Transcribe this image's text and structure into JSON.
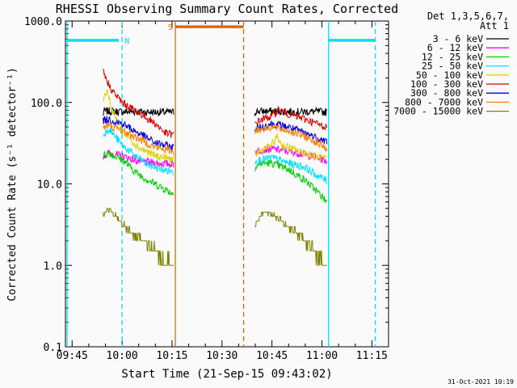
{
  "colors": {
    "background": "#fafafa",
    "flag_cyan": "#00e0f0",
    "flag_orange": "#e06a00",
    "axis": "#000000"
  },
  "chart_data": {
    "type": "line",
    "title": "RHESSI Observing Summary Count Rates, Corrected",
    "xlabel": "Start Time (21-Sep-15 09:43:02)",
    "ylabel": "Corrected Count Rate (s⁻¹ detector⁻¹)",
    "y_scale": "log",
    "ylim": [
      0.1,
      1000
    ],
    "y_ticks": [
      {
        "value": 0.1,
        "label": "0.1"
      },
      {
        "value": 1,
        "label": "1.0"
      },
      {
        "value": 10,
        "label": "10.0"
      },
      {
        "value": 100,
        "label": "100.0"
      },
      {
        "value": 1000,
        "label": "1000.0"
      }
    ],
    "x_unit": "minutes after 09:40",
    "xlim": [
      3.0,
      100.0
    ],
    "x_ticks": [
      {
        "value": 5,
        "label": "09:45"
      },
      {
        "value": 20,
        "label": "10:00"
      },
      {
        "value": 35,
        "label": "10:15"
      },
      {
        "value": 50,
        "label": "10:30"
      },
      {
        "value": 65,
        "label": "10:45"
      },
      {
        "value": 80,
        "label": "11:00"
      },
      {
        "value": 95,
        "label": "11:15"
      }
    ],
    "legend": {
      "header_line1": "Det 1,3,5,6,7,",
      "header_line2": "Att 1",
      "placement": "top-right outside"
    },
    "series": [
      {
        "name": "3 - 6 keV",
        "color": "#000000",
        "segments": [
          {
            "x": [
              14.2,
              14.5,
              16,
              20,
              25,
              30,
              35.5
            ],
            "y": [
              68,
              78,
              78,
              77,
              77,
              76,
              76
            ]
          },
          {
            "x": [
              59.8,
              60,
              65,
              70,
              75,
              80,
              81.5
            ],
            "y": [
              72,
              78,
              78,
              77,
              77,
              77,
              76
            ]
          }
        ]
      },
      {
        "name": "6 - 12 keV",
        "color": "#ff00ff",
        "segments": [
          {
            "x": [
              14.3,
              16,
              20,
              25,
              30,
              35.5
            ],
            "y": [
              22,
              24,
              22,
              19,
              18,
              17.5
            ]
          },
          {
            "x": [
              59.8,
              62,
              65,
              70,
              75,
              80,
              81.5
            ],
            "y": [
              25,
              26,
              27,
              25,
              23,
              20,
              19
            ]
          }
        ]
      },
      {
        "name": "12 - 25 keV",
        "color": "#00d000",
        "segments": [
          {
            "x": [
              14.3,
              16,
              20,
              24,
              28,
              32,
              35.5
            ],
            "y": [
              22,
              24,
              20,
              14,
              11,
              9,
              7.5
            ]
          },
          {
            "x": [
              59.8,
              62,
              65,
              70,
              75,
              78,
              81.5
            ],
            "y": [
              16,
              18,
              18,
              15,
              11,
              8.5,
              6
            ]
          }
        ]
      },
      {
        "name": "25 - 50 keV",
        "color": "#00e0ff",
        "segments": [
          {
            "x": [
              14.3,
              16,
              20,
              24,
              28,
              32,
              35.5
            ],
            "y": [
              40,
              48,
              30,
              22,
              17,
              15,
              14
            ]
          },
          {
            "x": [
              59.8,
              62,
              65,
              70,
              75,
              78,
              81.5
            ],
            "y": [
              19,
              20,
              21,
              18,
              16,
              13,
              11
            ]
          }
        ]
      },
      {
        "name": "50 - 100 keV",
        "color": "#e0d000",
        "segments": [
          {
            "x": [
              14.3,
              15.5,
              17,
              20,
              25,
              30,
              35.5
            ],
            "y": [
              110,
              145,
              80,
              45,
              28,
              22,
              20
            ]
          },
          {
            "x": [
              59.8,
              62,
              65,
              66.5,
              68,
              72,
              78,
              81.5
            ],
            "y": [
              23,
              26,
              30,
              38,
              30,
              26,
              22,
              20
            ]
          }
        ]
      },
      {
        "name": "100 - 300 keV",
        "color": "#e00000",
        "segments": [
          {
            "x": [
              14.3,
              15,
              17,
              20,
              25,
              30,
              33,
              35.5
            ],
            "y": [
              250,
              200,
              140,
              100,
              75,
              55,
              42,
              40
            ]
          },
          {
            "x": [
              59.8,
              62,
              65,
              67,
              70,
              75,
              80,
              81.5
            ],
            "y": [
              55,
              62,
              68,
              82,
              72,
              62,
              52,
              50
            ]
          }
        ]
      },
      {
        "name": "300 - 800 keV",
        "color": "#0000e0",
        "segments": [
          {
            "x": [
              14.3,
              16,
              20,
              25,
              30,
              35.5
            ],
            "y": [
              60,
              62,
              55,
              42,
              32,
              28
            ]
          },
          {
            "x": [
              59.8,
              62,
              65,
              70,
              75,
              80,
              81.5
            ],
            "y": [
              48,
              50,
              55,
              50,
              42,
              35,
              33
            ]
          }
        ]
      },
      {
        "name": "800 - 7000 keV",
        "color": "#ff7f00",
        "segments": [
          {
            "x": [
              14.3,
              16,
              20,
              25,
              30,
              35.5
            ],
            "y": [
              50,
              52,
              45,
              36,
              28,
              25
            ]
          },
          {
            "x": [
              59.8,
              62,
              65,
              70,
              75,
              80,
              81.5
            ],
            "y": [
              45,
              47,
              50,
              45,
              38,
              30,
              27
            ]
          }
        ]
      },
      {
        "name": "7000 - 15000 keV",
        "color": "#808000",
        "segments": [
          {
            "x": [
              14.3,
              15.5,
              17,
              20,
              22,
              24,
              26,
              28,
              30,
              32,
              34,
              35.5
            ],
            "y": [
              4,
              4.8,
              4.5,
              3.2,
              2.8,
              2.2,
              2.0,
              1.8,
              1.5,
              1.2,
              1.0,
              1.0
            ]
          },
          {
            "x": [
              59.8,
              62,
              65,
              68,
              70,
              72,
              74,
              76,
              78,
              80,
              81.5
            ],
            "y": [
              3.0,
              4.5,
              4.2,
              3.5,
              3.0,
              2.5,
              2.2,
              1.8,
              1.5,
              1.2,
              1.0
            ]
          }
        ]
      }
    ],
    "vertical_markers": [
      {
        "x": 3.5,
        "color": "#00e0f0",
        "style": "solid"
      },
      {
        "x": 20.0,
        "color": "#00e0f0",
        "style": "dashed"
      },
      {
        "x": 36.0,
        "color": "#e06a00",
        "style": "solid"
      },
      {
        "x": 56.5,
        "color": "#e06a00",
        "style": "dashed"
      },
      {
        "x": 82.0,
        "color": "#00e0f0",
        "style": "solid"
      },
      {
        "x": 96.0,
        "color": "#00e0f0",
        "style": "dashed"
      }
    ],
    "flag_bars": [
      {
        "x_start": 3.5,
        "x_end": 19.0,
        "y": 580,
        "color": "#00e0f0"
      },
      {
        "x_start": 36.0,
        "x_end": 56.5,
        "y": 850,
        "color": "#e06a00"
      },
      {
        "x_start": 82.0,
        "x_end": 96.0,
        "y": 580,
        "color": "#00e0f0"
      }
    ],
    "flag_labels": [
      {
        "text": "N",
        "x": 21.5,
        "y": 580,
        "color": "#00e0f0"
      },
      {
        "text": "S",
        "x": 34.5,
        "y": 850,
        "color": "#e06a00"
      }
    ],
    "timestamp": "31-Oct-2021 10:19"
  }
}
